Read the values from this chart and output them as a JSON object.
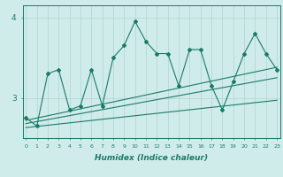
{
  "xlabel": "Humidex (Indice chaleur)",
  "x": [
    0,
    1,
    2,
    3,
    4,
    5,
    6,
    7,
    8,
    9,
    10,
    11,
    12,
    13,
    14,
    15,
    16,
    17,
    18,
    19,
    20,
    21,
    22,
    23
  ],
  "line1": [
    2.75,
    2.65,
    3.3,
    3.35,
    2.85,
    2.9,
    3.35,
    2.9,
    3.5,
    3.65,
    3.95,
    3.7,
    3.55,
    3.55,
    3.15,
    3.6,
    3.6,
    3.15,
    2.85,
    3.2,
    3.55,
    3.8,
    3.55,
    3.35
  ],
  "trend1_y": [
    2.72,
    3.38
  ],
  "trend2_y": [
    2.68,
    3.25
  ],
  "trend3_y": [
    2.63,
    2.97
  ],
  "color": "#1a7a6a",
  "bg_color": "#d0ecea",
  "grid_color": "#aed4cf",
  "ylim": [
    2.5,
    4.15
  ],
  "yticks": [
    3.0,
    4.0
  ],
  "xlim": [
    -0.3,
    23.3
  ],
  "figsize": [
    3.2,
    2.0
  ],
  "dpi": 100
}
